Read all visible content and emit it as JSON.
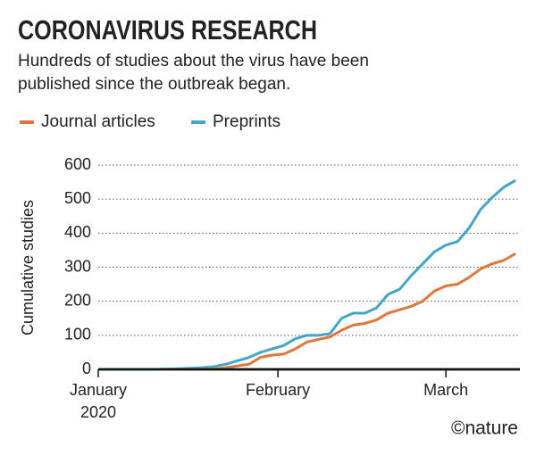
{
  "chart_data": {
    "type": "line",
    "title": "CORONAVIRUS RESEARCH",
    "subtitle": [
      "Hundreds of studies about the virus have been",
      "published since the outbreak began."
    ],
    "y_label": "Cumulative studies",
    "credit": "©nature",
    "x": [
      0,
      10,
      14,
      18,
      20,
      22,
      24,
      26,
      28,
      30,
      32,
      34,
      36,
      38,
      40,
      42,
      44,
      46,
      48,
      50,
      52,
      54,
      56,
      58,
      60,
      62,
      64,
      66,
      68,
      70,
      72
    ],
    "series": [
      {
        "name": "Journal articles",
        "color": "#e0773a",
        "values": [
          0,
          0,
          0,
          0,
          0,
          5,
          10,
          15,
          35,
          42,
          45,
          60,
          80,
          88,
          95,
          115,
          130,
          135,
          145,
          165,
          175,
          185,
          200,
          230,
          245,
          250,
          270,
          295,
          310,
          320,
          340
        ]
      },
      {
        "name": "Preprints",
        "color": "#45a5c8",
        "values": [
          0,
          0,
          2,
          5,
          8,
          15,
          25,
          35,
          50,
          60,
          70,
          90,
          100,
          100,
          105,
          150,
          165,
          165,
          180,
          220,
          235,
          275,
          310,
          345,
          365,
          375,
          415,
          470,
          505,
          535,
          555
        ]
      }
    ],
    "xlim": [
      0,
      72
    ],
    "xticks": [
      {
        "value": 0,
        "label": "January 2020"
      },
      {
        "value": 31,
        "label": "February"
      },
      {
        "value": 60,
        "label": "March"
      }
    ],
    "ylim": [
      0,
      600
    ],
    "yticks": [
      0,
      100,
      200,
      300,
      400,
      500,
      600
    ],
    "grid": true
  }
}
